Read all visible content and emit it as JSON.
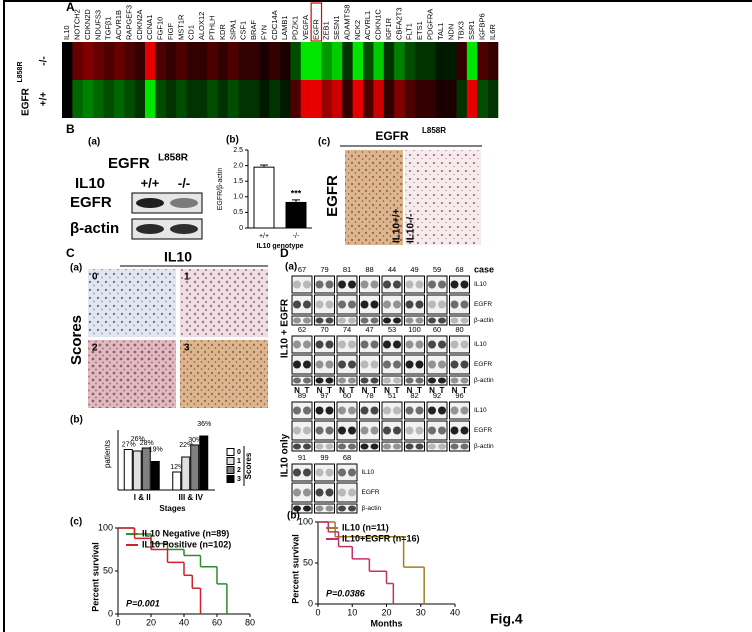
{
  "panel_a": {
    "label": "A",
    "genes": [
      "IL10",
      "NOTCH2",
      "CDKN2D",
      "NDUFS3",
      "TGFβ1",
      "ACVR1B",
      "RAPGEF3",
      "CDKN2A",
      "CCNA1",
      "FGF10",
      "FIGF",
      "MST1R",
      "CD1",
      "ALOX12",
      "PTHLH",
      "KDR",
      "SIPA1",
      "CSF1",
      "BRAF",
      "FYN",
      "CDC14A",
      "LAMB1",
      "PDZK1",
      "VEGFA",
      "EGFR",
      "ZEB1",
      "SESN1",
      "ADAMTS8",
      "NCK2",
      "ACVRL1",
      "CDKN1C",
      "IGF1R",
      "CBFA2T3",
      "FLT1",
      "ETS1",
      "PDGFRA",
      "TAL1",
      "NDN",
      "TBX3",
      "SSR1",
      "IGFBP6",
      "IL6R"
    ],
    "highlight": "EGFR",
    "row_title": "EGFR",
    "row_title_sup": "L858R",
    "genotypes": [
      "-/-",
      "+/+"
    ],
    "values": [
      [
        0,
        0.4,
        0.5,
        0.4,
        0.3,
        0.4,
        0.3,
        0.2,
        0.9,
        0.3,
        0.2,
        0.3,
        0.2,
        0.2,
        0.3,
        0.2,
        0.3,
        0.2,
        0.2,
        0.1,
        0.2,
        0.1,
        -0.3,
        -0.9,
        -0.9,
        -0.6,
        -0.8,
        -0.2,
        -0.9,
        -0.3,
        -0.8,
        -0.2,
        -0.5,
        -0.3,
        -0.2,
        -0.2,
        -0.1,
        -0.1,
        0.2,
        -0.9,
        0.3,
        0.2
      ],
      [
        0,
        -0.4,
        -0.5,
        -0.4,
        -0.3,
        -0.4,
        -0.3,
        -0.2,
        -0.9,
        -0.3,
        -0.2,
        -0.3,
        -0.2,
        -0.2,
        -0.3,
        -0.2,
        -0.3,
        -0.2,
        -0.2,
        -0.1,
        -0.2,
        -0.1,
        0.3,
        0.9,
        0.9,
        0.6,
        0.8,
        0.2,
        0.9,
        0.3,
        0.8,
        0.2,
        0.5,
        0.3,
        0.2,
        0.2,
        0.1,
        0.1,
        -0.2,
        0.9,
        -0.3,
        -0.2
      ]
    ]
  },
  "panel_b": {
    "label": "B",
    "blot": {
      "sub": "(a)",
      "title": "EGFR",
      "title_sup": "L858R",
      "lane_header": "IL10",
      "lanes": [
        "+/+",
        "-/-"
      ],
      "bands": [
        "EGFR",
        "β-actin"
      ]
    },
    "chart": {
      "sub": "(b)",
      "type": "bar",
      "y_label": "EGFR/β-actin",
      "x_label": "IL10 genotype",
      "categories": [
        "+/+",
        "-/-"
      ],
      "values": [
        1.95,
        0.82
      ],
      "errors": [
        0.07,
        0.08
      ],
      "colors": [
        "#ffffff",
        "#000000"
      ],
      "annotation": "***",
      "ylim": [
        0,
        2.5
      ],
      "yticks": [
        0,
        0.5,
        {
          "value": 1,
          "label": "1.0"
        },
        1.5,
        {
          "value": 2,
          "label": "2.0"
        },
        2.5
      ]
    },
    "ihc": {
      "sub": "(c)",
      "title": "EGFR",
      "title_sup": "L858R",
      "side_label": "EGFR",
      "images": [
        "IL10+/+",
        "IL10-/-"
      ]
    }
  },
  "panel_c": {
    "label": "C",
    "ihc": {
      "sub": "(a)",
      "title": "IL10",
      "side_label": "Scores",
      "scores": [
        "0",
        "1",
        "2",
        "3"
      ]
    },
    "chart": {
      "sub": "(b)",
      "type": "grouped_bar",
      "y_label": "patients",
      "x_label": "Stages",
      "legend_title": "Scores",
      "categories": [
        "I & II",
        "III & IV"
      ],
      "ylim": [
        0,
        40
      ],
      "series": [
        {
          "name": "0",
          "color": "#ffffff",
          "values": [
            27,
            12
          ],
          "value_labels": [
            "27%",
            "12%"
          ]
        },
        {
          "name": "1",
          "color": "#e0e0e0",
          "values": [
            26,
            22
          ],
          "value_labels": [
            "26%",
            "22%"
          ]
        },
        {
          "name": "2",
          "color": "#808080",
          "values": [
            28,
            30
          ],
          "value_labels": [
            "28%",
            "30%"
          ]
        },
        {
          "name": "3",
          "color": "#000000",
          "values": [
            19,
            36
          ],
          "value_labels": [
            "19%",
            "36%"
          ]
        }
      ]
    },
    "survival": {
      "sub": "(c)",
      "type": "step",
      "y_label": "Percent survival",
      "annotation": "P=0.001",
      "xlim": [
        0,
        80
      ],
      "xticks": [
        0,
        20,
        40,
        60,
        80
      ],
      "ylim": [
        0,
        100
      ],
      "yticks": [
        0,
        50,
        100
      ],
      "series": [
        {
          "name": "IL10 Negative (n=89)",
          "color": "#2e8b2e",
          "x": [
            0,
            10,
            20,
            30,
            40,
            50,
            60,
            66
          ],
          "values": [
            100,
            93,
            82,
            75,
            68,
            55,
            35,
            0
          ]
        },
        {
          "name": "IL10 Positive (n=102)",
          "color": "#d0202a",
          "x": [
            0,
            10,
            20,
            30,
            40,
            45,
            50
          ],
          "values": [
            100,
            88,
            75,
            60,
            45,
            30,
            0
          ]
        }
      ]
    }
  },
  "panel_d": {
    "label": "D",
    "blots": {
      "sub": "(a)",
      "case_header": "case",
      "lane_labels": [
        "N",
        "T"
      ],
      "groups": [
        {
          "name": "IL10 + EGFR",
          "sets": [
            {
              "cases": [
                67,
                79,
                81,
                88,
                44,
                49,
                59,
                68
              ],
              "bands": [
                "IL10",
                "EGFR",
                "β-actin"
              ]
            },
            {
              "cases": [
                62,
                70,
                74,
                47,
                53,
                100,
                60,
                80
              ],
              "bands": [
                "IL10",
                "EGFR",
                "β-actin"
              ]
            }
          ]
        },
        {
          "name": "IL10 only",
          "sets": [
            {
              "cases": [
                89,
                97,
                60,
                78,
                51,
                82,
                92,
                96
              ],
              "bands": [
                "IL10",
                "EGFR",
                "β-actin"
              ]
            },
            {
              "cases": [
                91,
                99,
                68
              ],
              "bands": [
                "IL10",
                "EGFR",
                "β-actin"
              ]
            }
          ]
        }
      ]
    },
    "survival": {
      "sub": "(b)",
      "type": "step",
      "y_label": "Percent survival",
      "x_label": "Months",
      "annotation": "P=0.0386",
      "xlim": [
        0,
        40
      ],
      "xticks": [
        0,
        10,
        20,
        30,
        40
      ],
      "ylim": [
        0,
        100
      ],
      "yticks": [
        0,
        50,
        100
      ],
      "series": [
        {
          "name": "IL10 (n=11)",
          "color": "#a08020",
          "x": [
            0,
            5,
            25,
            31
          ],
          "values": [
            100,
            82,
            45,
            0
          ]
        },
        {
          "name": "IL10+EGFR (n=16)",
          "color": "#c0306a",
          "x": [
            0,
            3,
            6,
            10,
            15,
            20,
            22
          ],
          "values": [
            100,
            88,
            70,
            55,
            40,
            25,
            0
          ]
        }
      ]
    }
  },
  "figure_label": "Fig.4"
}
